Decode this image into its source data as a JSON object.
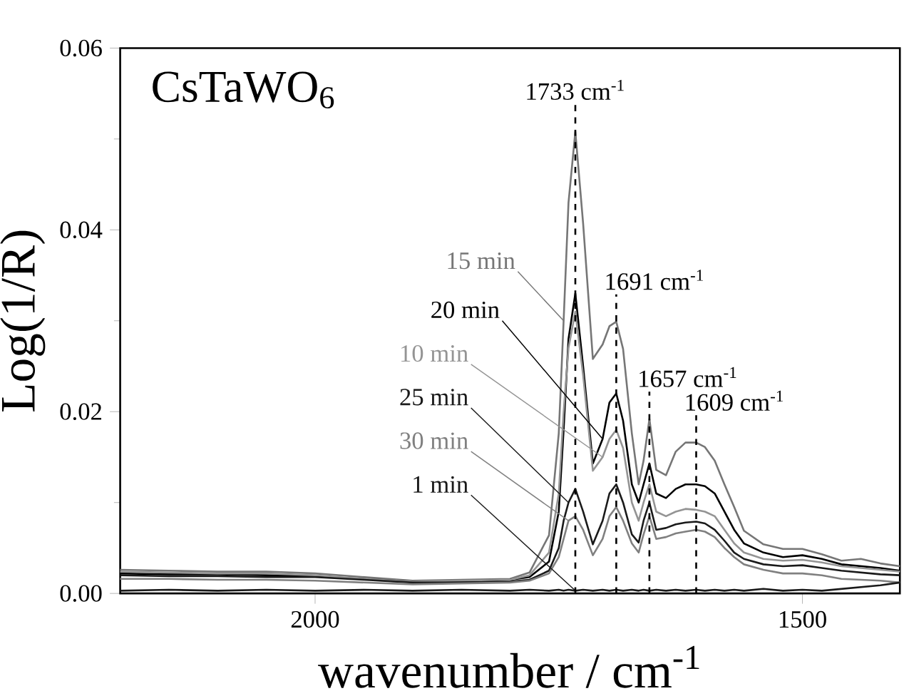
{
  "chart_data": {
    "type": "line",
    "title": "CsTaWO$_{6}$",
    "xlabel": "wavenumber / cm$^{-1}$",
    "ylabel": "Log(1/R)",
    "xlim": [
      2200,
      1400
    ],
    "ylim": [
      0,
      0.06
    ],
    "xticks": [
      2000,
      1500
    ],
    "yticks": [
      {
        "value": 0,
        "label": "0.00"
      },
      {
        "value": 0.01,
        "label": null
      },
      0.02,
      {
        "value": 0.03,
        "label": null
      },
      0.04,
      {
        "value": 0.05,
        "label": null
      },
      0.06
    ],
    "x": [
      2200,
      2150,
      2100,
      2050,
      2000,
      1950,
      1900,
      1850,
      1800,
      1780,
      1760,
      1750,
      1745,
      1740,
      1733,
      1725,
      1715,
      1705,
      1698,
      1691,
      1684,
      1675,
      1668,
      1663,
      1657,
      1650,
      1640,
      1630,
      1620,
      1609,
      1600,
      1590,
      1580,
      1570,
      1560,
      1540,
      1520,
      1500,
      1480,
      1460,
      1440,
      1420,
      1400
    ],
    "series": [
      {
        "name": "15 min",
        "color": "#767676",
        "values": [
          0.0026,
          0.0025,
          0.0024,
          0.0024,
          0.0022,
          0.0018,
          0.0014,
          0.0015,
          0.0016,
          0.0023,
          0.0064,
          0.0176,
          0.03,
          0.043,
          0.0508,
          0.0407,
          0.0258,
          0.0274,
          0.0294,
          0.0299,
          0.0269,
          0.0176,
          0.012,
          0.0146,
          0.0192,
          0.0136,
          0.013,
          0.0156,
          0.0166,
          0.0166,
          0.0161,
          0.0146,
          0.012,
          0.0095,
          0.0069,
          0.0054,
          0.0049,
          0.0049,
          0.0043,
          0.0036,
          0.0038,
          0.0033,
          0.003
        ]
      },
      {
        "name": "20 min",
        "color": "#000000",
        "values": [
          0.0022,
          0.0021,
          0.0021,
          0.002,
          0.0019,
          0.0016,
          0.0013,
          0.0013,
          0.0015,
          0.0018,
          0.0035,
          0.009,
          0.018,
          0.028,
          0.033,
          0.025,
          0.0143,
          0.017,
          0.021,
          0.022,
          0.019,
          0.012,
          0.01,
          0.012,
          0.0143,
          0.011,
          0.0105,
          0.0115,
          0.012,
          0.012,
          0.0118,
          0.011,
          0.009,
          0.007,
          0.0055,
          0.0045,
          0.004,
          0.0042,
          0.0038,
          0.0032,
          0.003,
          0.0028,
          0.0025
        ]
      },
      {
        "name": "10 min",
        "color": "#949494",
        "values": [
          0.0024,
          0.0023,
          0.0022,
          0.0022,
          0.002,
          0.0016,
          0.0013,
          0.0014,
          0.0015,
          0.002,
          0.0045,
          0.011,
          0.02,
          0.027,
          0.031,
          0.024,
          0.0135,
          0.015,
          0.017,
          0.018,
          0.016,
          0.01,
          0.008,
          0.01,
          0.012,
          0.009,
          0.0085,
          0.009,
          0.0093,
          0.0092,
          0.009,
          0.0085,
          0.007,
          0.0055,
          0.0045,
          0.0038,
          0.0036,
          0.0037,
          0.0034,
          0.003,
          0.0028,
          0.0026,
          0.0024
        ]
      },
      {
        "name": "25 min",
        "color": "#1a1a1a",
        "values": [
          0.002,
          0.0019,
          0.0019,
          0.0018,
          0.0018,
          0.0015,
          0.0012,
          0.0012,
          0.0013,
          0.0015,
          0.0025,
          0.005,
          0.008,
          0.01,
          0.0115,
          0.009,
          0.0054,
          0.008,
          0.011,
          0.012,
          0.01,
          0.0065,
          0.0056,
          0.008,
          0.01,
          0.007,
          0.0072,
          0.0076,
          0.0078,
          0.0079,
          0.0077,
          0.007,
          0.0058,
          0.0045,
          0.0038,
          0.0032,
          0.003,
          0.0031,
          0.0028,
          0.0025,
          0.0023,
          0.0021,
          0.002
        ]
      },
      {
        "name": "30 min",
        "color": "#808080",
        "values": [
          0.0016,
          0.0016,
          0.0015,
          0.0015,
          0.0014,
          0.0012,
          0.001,
          0.0011,
          0.0012,
          0.0014,
          0.0022,
          0.004,
          0.006,
          0.008,
          0.0085,
          0.007,
          0.0042,
          0.006,
          0.0085,
          0.0095,
          0.008,
          0.0055,
          0.0045,
          0.0065,
          0.0085,
          0.006,
          0.0062,
          0.0066,
          0.0068,
          0.007,
          0.0068,
          0.0062,
          0.005,
          0.004,
          0.0032,
          0.0026,
          0.0022,
          0.0022,
          0.002,
          0.0016,
          0.0015,
          0.0014,
          0.0012
        ]
      },
      {
        "name": "1 min",
        "color": "#1a1a1a",
        "values": [
          0.0003,
          0.0004,
          0.0003,
          0.0004,
          0.0003,
          0.0004,
          0.0003,
          0.0004,
          0.0003,
          0.0004,
          0.0003,
          0.0004,
          0.0003,
          0.0004,
          0.0003,
          0.0004,
          0.0003,
          0.0004,
          0.0003,
          0.0004,
          0.0003,
          0.0004,
          0.0003,
          0.0004,
          0.0003,
          0.0004,
          0.0003,
          0.0004,
          0.0003,
          0.0004,
          0.0003,
          0.0004,
          0.0003,
          0.0004,
          0.0003,
          0.0005,
          0.0003,
          0.0004,
          0.0003,
          0.0005,
          0.0007,
          0.0009,
          0.0012
        ]
      }
    ],
    "ref_lines": [
      {
        "axis": "x",
        "value": 1733,
        "label": "1733 cm$^{-1}$",
        "line_style": "dashed"
      },
      {
        "axis": "x",
        "value": 1691,
        "label": "1691 cm$^{-1}$",
        "line_style": "dashed"
      },
      {
        "axis": "x",
        "value": 1657,
        "label": "1657 cm$^{-1}$",
        "line_style": "dashed"
      },
      {
        "axis": "x",
        "value": 1609,
        "label": "1609 cm$^{-1}$",
        "line_style": "dashed"
      }
    ]
  }
}
